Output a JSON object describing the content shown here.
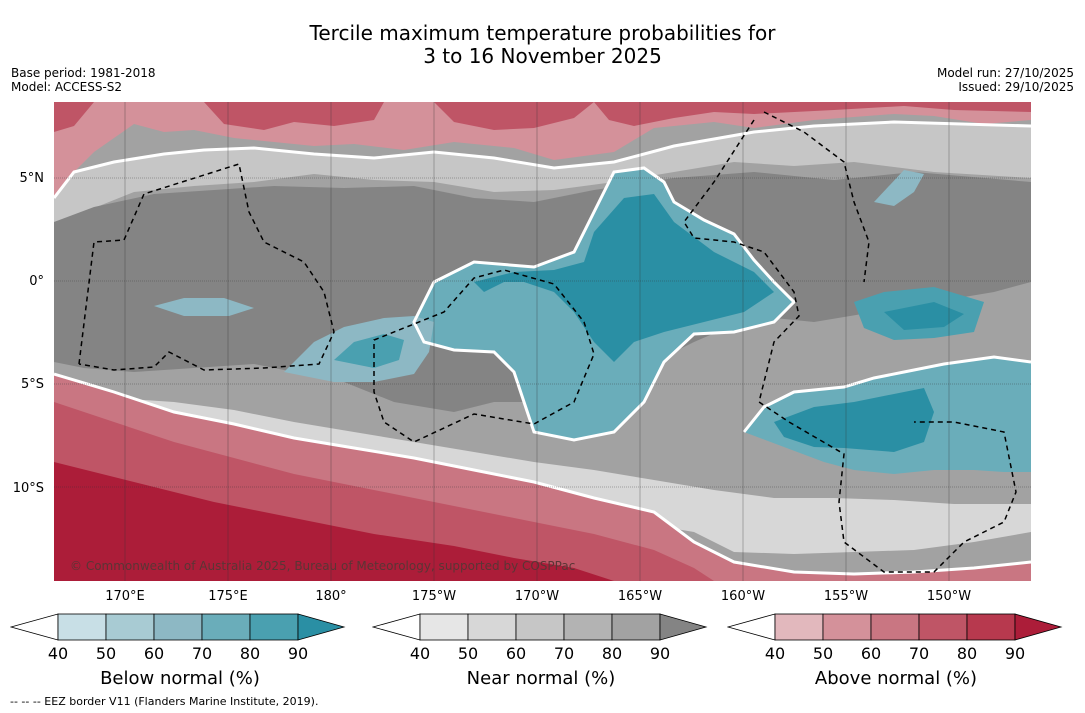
{
  "title": {
    "line1": "Tercile maximum temperature probabilities for",
    "line2": "3 to 16 November 2025"
  },
  "meta_left": {
    "base_period": "Base period: 1981-2018",
    "model": "Model: ACCESS-S2"
  },
  "meta_right": {
    "model_run": "Model run: 27/10/2025",
    "issued": "Issued: 29/10/2025"
  },
  "latitude_labels": [
    "5°N",
    "0°",
    "5°S",
    "10°S"
  ],
  "longitude_labels": [
    "170°E",
    "175°E",
    "180°",
    "175°W",
    "170°W",
    "165°W",
    "160°W",
    "155°W",
    "150°W"
  ],
  "copyright": "© Commonwealth of Australia 2025, Bureau of Meteorology, supported by COSPPac",
  "colorbars": [
    {
      "title": "Below normal (%)",
      "ticks": [
        "40",
        "50",
        "60",
        "70",
        "80",
        "90"
      ],
      "colors": [
        "#ffffff",
        "#c8dfe6",
        "#a8cbd3",
        "#8db8c4",
        "#6aadba",
        "#4aa0b0",
        "#2a8fa4"
      ]
    },
    {
      "title": "Near normal (%)",
      "ticks": [
        "40",
        "50",
        "60",
        "70",
        "80",
        "90"
      ],
      "colors": [
        "#ffffff",
        "#e6e6e6",
        "#d7d7d7",
        "#c6c6c6",
        "#b3b3b3",
        "#a2a2a2",
        "#848484"
      ]
    },
    {
      "title": "Above normal (%)",
      "ticks": [
        "40",
        "50",
        "60",
        "70",
        "80",
        "90"
      ],
      "colors": [
        "#ffffff",
        "#e2b8bd",
        "#d4919a",
        "#c97682",
        "#bf5566",
        "#b7394e",
        "#ac1d39"
      ]
    }
  ],
  "footer": "--  --  -- EEZ border V11 (Flanders Marine Institute, 2019)."
}
